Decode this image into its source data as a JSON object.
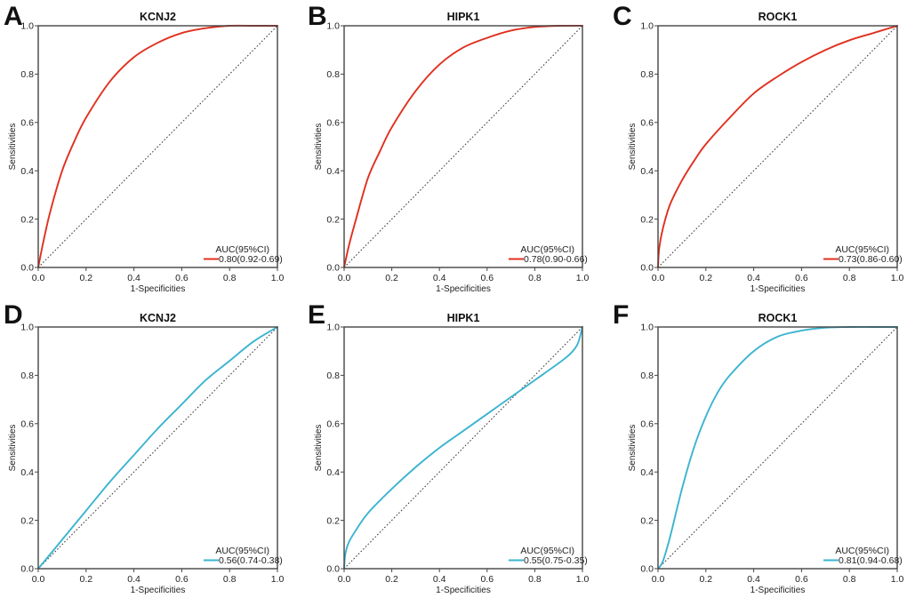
{
  "chart_data": [
    {
      "panel": "A",
      "type": "line",
      "title": "KCNJ2",
      "xlabel": "1-Specificities",
      "ylabel": "Sensitivities",
      "xlim": [
        0,
        1
      ],
      "ylim": [
        0,
        1
      ],
      "xticks": [
        "0.0",
        "0.2",
        "0.4",
        "0.6",
        "0.8",
        "1.0"
      ],
      "yticks": [
        "0.0",
        "0.2",
        "0.4",
        "0.6",
        "0.8",
        "1.0"
      ],
      "grid": false,
      "legend_position": "bottom-right",
      "legend_title": "AUC(95%CI)",
      "series": [
        {
          "name": "0.80(0.92-0.69)",
          "color": "#E0301E",
          "x": [
            0,
            0.02,
            0.05,
            0.1,
            0.15,
            0.2,
            0.3,
            0.4,
            0.5,
            0.6,
            0.7,
            0.8,
            0.9,
            1.0
          ],
          "y": [
            0,
            0.1,
            0.23,
            0.4,
            0.52,
            0.62,
            0.77,
            0.87,
            0.93,
            0.97,
            0.99,
            1.0,
            1.0,
            1.0
          ]
        }
      ],
      "reference_line": {
        "x": [
          0,
          1
        ],
        "y": [
          0,
          1
        ],
        "style": "dotted"
      }
    },
    {
      "panel": "B",
      "type": "line",
      "title": "HIPK1",
      "xlabel": "1-Specificities",
      "ylabel": "Sensitivities",
      "xlim": [
        0,
        1
      ],
      "ylim": [
        0,
        1
      ],
      "xticks": [
        "0.0",
        "0.2",
        "0.4",
        "0.6",
        "0.8",
        "1.0"
      ],
      "yticks": [
        "0.0",
        "0.2",
        "0.4",
        "0.6",
        "0.8",
        "1.0"
      ],
      "grid": false,
      "legend_position": "bottom-right",
      "legend_title": "AUC(95%CI)",
      "series": [
        {
          "name": "0.78(0.90-0.66)",
          "color": "#E0301E",
          "x": [
            0,
            0.02,
            0.05,
            0.1,
            0.15,
            0.2,
            0.3,
            0.4,
            0.5,
            0.6,
            0.7,
            0.8,
            0.9,
            1.0
          ],
          "y": [
            0,
            0.09,
            0.2,
            0.37,
            0.48,
            0.58,
            0.73,
            0.84,
            0.91,
            0.95,
            0.98,
            0.995,
            1.0,
            1.0
          ]
        }
      ],
      "reference_line": {
        "x": [
          0,
          1
        ],
        "y": [
          0,
          1
        ],
        "style": "dotted"
      }
    },
    {
      "panel": "C",
      "type": "line",
      "title": "ROCK1",
      "xlabel": "1-Specificities",
      "ylabel": "Sensitivities",
      "xlim": [
        0,
        1
      ],
      "ylim": [
        0,
        1
      ],
      "xticks": [
        "0.0",
        "0.2",
        "0.4",
        "0.6",
        "0.8",
        "1.0"
      ],
      "yticks": [
        "0.0",
        "0.2",
        "0.4",
        "0.6",
        "0.8",
        "1.0"
      ],
      "grid": false,
      "legend_position": "bottom-right",
      "legend_title": "AUC(95%CI)",
      "series": [
        {
          "name": "0.73(0.86-0.60)",
          "color": "#E0301E",
          "x": [
            0,
            0.005,
            0.02,
            0.05,
            0.1,
            0.15,
            0.2,
            0.3,
            0.4,
            0.5,
            0.6,
            0.7,
            0.8,
            0.9,
            1.0
          ],
          "y": [
            0,
            0.08,
            0.16,
            0.26,
            0.36,
            0.44,
            0.51,
            0.62,
            0.72,
            0.79,
            0.85,
            0.9,
            0.94,
            0.97,
            1.0
          ]
        }
      ],
      "reference_line": {
        "x": [
          0,
          1
        ],
        "y": [
          0,
          1
        ],
        "style": "dotted"
      }
    },
    {
      "panel": "D",
      "type": "line",
      "title": "KCNJ2",
      "xlabel": "1-Specificities",
      "ylabel": "Sensitivities",
      "xlim": [
        0,
        1
      ],
      "ylim": [
        0,
        1
      ],
      "xticks": [
        "0.0",
        "0.2",
        "0.4",
        "0.6",
        "0.8",
        "1.0"
      ],
      "yticks": [
        "0.0",
        "0.2",
        "0.4",
        "0.6",
        "0.8",
        "1.0"
      ],
      "grid": false,
      "legend_position": "bottom-right",
      "legend_title": "AUC(95%CI)",
      "series": [
        {
          "name": "0.56(0.74-0.38)",
          "color": "#3BB4D0",
          "x": [
            0,
            0.1,
            0.2,
            0.3,
            0.4,
            0.5,
            0.6,
            0.7,
            0.8,
            0.9,
            1.0
          ],
          "y": [
            0,
            0.12,
            0.24,
            0.36,
            0.47,
            0.58,
            0.68,
            0.78,
            0.86,
            0.94,
            1.0
          ]
        }
      ],
      "reference_line": {
        "x": [
          0,
          1
        ],
        "y": [
          0,
          1
        ],
        "style": "dotted"
      }
    },
    {
      "panel": "E",
      "type": "line",
      "title": "HIPK1",
      "xlabel": "1-Specificities",
      "ylabel": "Sensitivities",
      "xlim": [
        0,
        1
      ],
      "ylim": [
        0,
        1
      ],
      "xticks": [
        "0.0",
        "0.2",
        "0.4",
        "0.6",
        "0.8",
        "1.0"
      ],
      "yticks": [
        "0.0",
        "0.2",
        "0.4",
        "0.6",
        "0.8",
        "1.0"
      ],
      "grid": false,
      "legend_position": "bottom-right",
      "legend_title": "AUC(95%CI)",
      "series": [
        {
          "name": "0.55(0.75-0.35)",
          "color": "#3BB4D0",
          "x": [
            0,
            0.005,
            0.02,
            0.05,
            0.1,
            0.2,
            0.3,
            0.4,
            0.5,
            0.6,
            0.7,
            0.8,
            0.9,
            0.95,
            0.98,
            1.0
          ],
          "y": [
            0,
            0.06,
            0.11,
            0.16,
            0.23,
            0.33,
            0.42,
            0.5,
            0.57,
            0.64,
            0.71,
            0.78,
            0.85,
            0.89,
            0.93,
            1.0
          ]
        }
      ],
      "reference_line": {
        "x": [
          0,
          1
        ],
        "y": [
          0,
          1
        ],
        "style": "dotted"
      }
    },
    {
      "panel": "F",
      "type": "line",
      "title": "ROCK1",
      "xlabel": "1-Specificities",
      "ylabel": "Sensitivities",
      "xlim": [
        0,
        1
      ],
      "ylim": [
        0,
        1
      ],
      "xticks": [
        "0.0",
        "0.2",
        "0.4",
        "0.6",
        "0.8",
        "1.0"
      ],
      "yticks": [
        "0.0",
        "0.2",
        "0.4",
        "0.6",
        "0.8",
        "1.0"
      ],
      "grid": false,
      "legend_position": "bottom-right",
      "legend_title": "AUC(95%CI)",
      "series": [
        {
          "name": "0.81(0.94-0.68)",
          "color": "#3BB4D0",
          "x": [
            0,
            0.02,
            0.05,
            0.1,
            0.15,
            0.2,
            0.25,
            0.3,
            0.4,
            0.5,
            0.6,
            0.7,
            0.8,
            0.9,
            1.0
          ],
          "y": [
            0,
            0.03,
            0.13,
            0.33,
            0.5,
            0.63,
            0.73,
            0.8,
            0.9,
            0.96,
            0.985,
            0.997,
            1.0,
            1.0,
            1.0
          ]
        }
      ],
      "reference_line": {
        "x": [
          0,
          1
        ],
        "y": [
          0,
          1
        ],
        "style": "dotted"
      }
    }
  ]
}
